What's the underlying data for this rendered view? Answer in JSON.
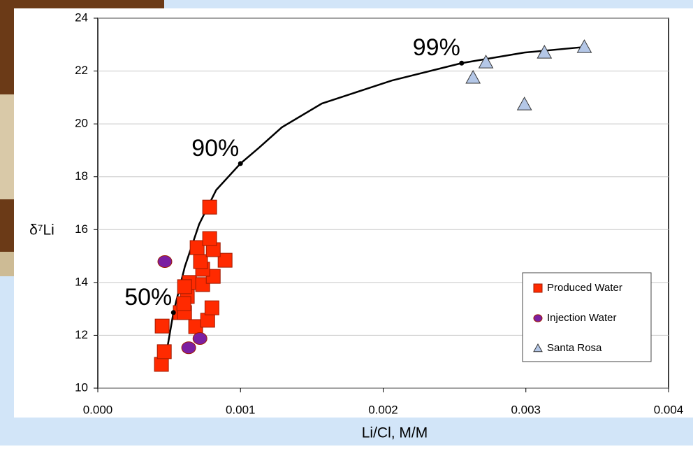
{
  "chart_data": {
    "type": "scatter",
    "x_label": "Li/Cl, M/M",
    "y_label": "δ⁷Li",
    "xlim": [
      0,
      0.004
    ],
    "ylim": [
      10,
      24
    ],
    "xticks": [
      {
        "value": 0,
        "label": "0.000"
      },
      0.001,
      0.002,
      0.003,
      0.004
    ],
    "yticks": [
      10,
      12,
      14,
      16,
      18,
      20,
      22,
      24
    ],
    "grid": true,
    "legend": "lower right",
    "series": [
      {
        "name": "Produced Water",
        "color": "#ff2a00",
        "marker": "square",
        "x": [
          0.000446,
          0.000466,
          0.000451,
          0.000578,
          0.000608,
          0.000686,
          0.00077,
          0.0008,
          0.000627,
          0.000642,
          0.000608,
          0.000735,
          0.000809,
          0.000735,
          0.00072,
          0.000892,
          0.000696,
          0.000809,
          0.000784,
          0.000784,
          0.000603
        ],
        "values": [
          10.9,
          11.38,
          12.35,
          12.86,
          12.86,
          12.33,
          12.57,
          13.04,
          13.47,
          14.0,
          13.84,
          13.92,
          14.23,
          14.5,
          14.79,
          14.84,
          15.32,
          15.24,
          15.66,
          16.85,
          13.2
        ]
      },
      {
        "name": "Injection Water",
        "color": "#7b1fa2",
        "marker": "circle",
        "x": [
          0.00047,
          0.000637,
          0.000716
        ],
        "values": [
          14.79,
          11.53,
          11.88
        ]
      },
      {
        "name": "Santa Rosa",
        "color": "#b4c7e7",
        "marker": "triangle",
        "x": [
          0.00263,
          0.00272,
          0.00299,
          0.00313,
          0.00341
        ],
        "values": [
          21.75,
          22.33,
          20.74,
          22.7,
          22.91
        ]
      }
    ],
    "curve": {
      "color": "#000000",
      "x": [
        0.00048,
        0.00053,
        0.00061,
        0.00071,
        0.00083,
        0.001,
        0.00113,
        0.00129,
        0.00157,
        0.00206,
        0.00255,
        0.00299,
        0.00341
      ],
      "values": [
        11.3,
        12.86,
        14.6,
        16.2,
        17.5,
        18.5,
        19.1,
        19.87,
        20.77,
        21.64,
        22.3,
        22.7,
        22.91
      ]
    },
    "annotations": [
      {
        "text": "50%",
        "x": 0.00053,
        "y": 12.86
      },
      {
        "text": "90%",
        "x": 0.001,
        "y": 18.5
      },
      {
        "text": "99%",
        "x": 0.00255,
        "y": 22.3
      }
    ]
  }
}
